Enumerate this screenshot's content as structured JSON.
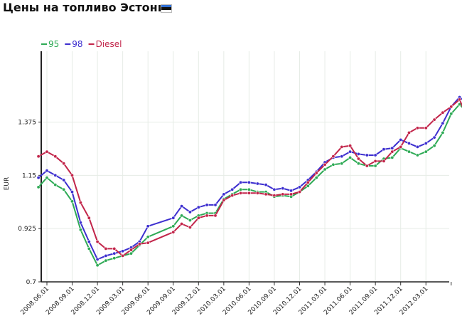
{
  "title": "Цены на топливо Эстония",
  "colors": {
    "flag_top": "#2f6fd6",
    "flag_mid": "#111111",
    "flag_bottom": "#ffffff"
  },
  "chart_data": {
    "type": "line",
    "title": "Цены на топливо Эстония",
    "ylabel": "EUR",
    "xlabel": "",
    "ylim": [
      0.7,
      1.65
    ],
    "yticks": [
      0.7,
      0.925,
      1.15,
      1.375
    ],
    "ytick_labels": [
      "0.7",
      "0.925",
      "1.15",
      "1.375"
    ],
    "grid": true,
    "legend_position": "top-left",
    "x_tick_labels": [
      "2008.06.01",
      "2008.09.01",
      "2008.12.01",
      "2009.03.01",
      "2009.06.01",
      "2009.09.01",
      "2009.12.01",
      "2010.03.01",
      "2010.06.01",
      "2010.09.01",
      "2010.12.01",
      "2011.03.01",
      "2011.06.01",
      "2011.09.01",
      "2011.12.01",
      "2012.03.01"
    ],
    "series": [
      {
        "name": "95",
        "color": "#2eaa55",
        "points": [
          [
            "2008.05.01",
            1.1
          ],
          [
            "2008.06.01",
            1.14
          ],
          [
            "2008.07.01",
            1.11
          ],
          [
            "2008.08.01",
            1.09
          ],
          [
            "2008.09.01",
            1.04
          ],
          [
            "2008.10.01",
            0.92
          ],
          [
            "2008.11.01",
            0.84
          ],
          [
            "2008.12.01",
            0.77
          ],
          [
            "2009.01.01",
            0.79
          ],
          [
            "2009.02.01",
            0.8
          ],
          [
            "2009.03.01",
            0.81
          ],
          [
            "2009.04.01",
            0.82
          ],
          [
            "2009.05.01",
            0.855
          ],
          [
            "2009.06.01",
            0.89
          ],
          [
            "2009.09.01",
            0.935
          ],
          [
            "2009.10.01",
            0.98
          ],
          [
            "2009.11.01",
            0.96
          ],
          [
            "2009.12.01",
            0.98
          ],
          [
            "2010.01.01",
            0.99
          ],
          [
            "2010.02.01",
            0.99
          ],
          [
            "2010.03.01",
            1.05
          ],
          [
            "2010.04.01",
            1.07
          ],
          [
            "2010.05.01",
            1.09
          ],
          [
            "2010.06.01",
            1.09
          ],
          [
            "2010.07.01",
            1.08
          ],
          [
            "2010.08.01",
            1.08
          ],
          [
            "2010.09.01",
            1.06
          ],
          [
            "2010.10.01",
            1.065
          ],
          [
            "2010.11.01",
            1.06
          ],
          [
            "2010.12.01",
            1.08
          ],
          [
            "2011.01.01",
            1.105
          ],
          [
            "2011.02.01",
            1.14
          ],
          [
            "2011.03.01",
            1.175
          ],
          [
            "2011.04.01",
            1.195
          ],
          [
            "2011.05.01",
            1.2
          ],
          [
            "2011.06.01",
            1.225
          ],
          [
            "2011.07.01",
            1.2
          ],
          [
            "2011.08.01",
            1.19
          ],
          [
            "2011.09.01",
            1.19
          ],
          [
            "2011.10.01",
            1.22
          ],
          [
            "2011.11.01",
            1.225
          ],
          [
            "2011.12.01",
            1.265
          ],
          [
            "2012.01.01",
            1.25
          ],
          [
            "2012.02.01",
            1.235
          ],
          [
            "2012.03.01",
            1.25
          ],
          [
            "2012.04.01",
            1.275
          ],
          [
            "2012.05.01",
            1.33
          ],
          [
            "2012.06.01",
            1.41
          ],
          [
            "2012.07.01",
            1.45
          ],
          [
            "2012.08.01",
            1.41
          ]
        ]
      },
      {
        "name": "98",
        "color": "#3d2fcf",
        "points": [
          [
            "2008.05.01",
            1.14
          ],
          [
            "2008.06.01",
            1.17
          ],
          [
            "2008.07.01",
            1.15
          ],
          [
            "2008.08.01",
            1.13
          ],
          [
            "2008.09.01",
            1.08
          ],
          [
            "2008.10.01",
            0.95
          ],
          [
            "2008.11.01",
            0.87
          ],
          [
            "2008.12.01",
            0.795
          ],
          [
            "2009.01.01",
            0.81
          ],
          [
            "2009.02.01",
            0.82
          ],
          [
            "2009.03.01",
            0.83
          ],
          [
            "2009.04.01",
            0.845
          ],
          [
            "2009.05.01",
            0.87
          ],
          [
            "2009.06.01",
            0.935
          ],
          [
            "2009.09.01",
            0.97
          ],
          [
            "2009.10.01",
            1.02
          ],
          [
            "2009.11.01",
            0.995
          ],
          [
            "2009.12.01",
            1.015
          ],
          [
            "2010.01.01",
            1.025
          ],
          [
            "2010.02.01",
            1.025
          ],
          [
            "2010.03.01",
            1.07
          ],
          [
            "2010.04.01",
            1.09
          ],
          [
            "2010.05.01",
            1.12
          ],
          [
            "2010.06.01",
            1.12
          ],
          [
            "2010.07.01",
            1.115
          ],
          [
            "2010.08.01",
            1.11
          ],
          [
            "2010.09.01",
            1.09
          ],
          [
            "2010.10.01",
            1.095
          ],
          [
            "2010.11.01",
            1.085
          ],
          [
            "2010.12.01",
            1.1
          ],
          [
            "2011.01.01",
            1.13
          ],
          [
            "2011.02.01",
            1.165
          ],
          [
            "2011.03.01",
            1.205
          ],
          [
            "2011.04.01",
            1.225
          ],
          [
            "2011.05.01",
            1.23
          ],
          [
            "2011.06.01",
            1.25
          ],
          [
            "2011.07.01",
            1.24
          ],
          [
            "2011.08.01",
            1.235
          ],
          [
            "2011.09.01",
            1.235
          ],
          [
            "2011.10.01",
            1.26
          ],
          [
            "2011.11.01",
            1.265
          ],
          [
            "2011.12.01",
            1.3
          ],
          [
            "2012.01.01",
            1.285
          ],
          [
            "2012.02.01",
            1.27
          ],
          [
            "2012.03.01",
            1.285
          ],
          [
            "2012.04.01",
            1.31
          ],
          [
            "2012.05.01",
            1.37
          ],
          [
            "2012.06.01",
            1.44
          ],
          [
            "2012.07.01",
            1.48
          ],
          [
            "2012.08.01",
            1.45
          ]
        ]
      },
      {
        "name": "Diesel",
        "color": "#c2254a",
        "points": [
          [
            "2008.05.01",
            1.23
          ],
          [
            "2008.06.01",
            1.25
          ],
          [
            "2008.07.01",
            1.23
          ],
          [
            "2008.08.01",
            1.2
          ],
          [
            "2008.09.01",
            1.15
          ],
          [
            "2008.10.01",
            1.035
          ],
          [
            "2008.11.01",
            0.97
          ],
          [
            "2008.12.01",
            0.87
          ],
          [
            "2009.01.01",
            0.84
          ],
          [
            "2009.02.01",
            0.84
          ],
          [
            "2009.03.01",
            0.81
          ],
          [
            "2009.04.01",
            0.835
          ],
          [
            "2009.05.01",
            0.86
          ],
          [
            "2009.06.01",
            0.865
          ],
          [
            "2009.09.01",
            0.91
          ],
          [
            "2009.10.01",
            0.945
          ],
          [
            "2009.11.01",
            0.93
          ],
          [
            "2009.12.01",
            0.97
          ],
          [
            "2010.01.01",
            0.98
          ],
          [
            "2010.02.01",
            0.98
          ],
          [
            "2010.03.01",
            1.045
          ],
          [
            "2010.04.01",
            1.065
          ],
          [
            "2010.05.01",
            1.075
          ],
          [
            "2010.06.01",
            1.075
          ],
          [
            "2010.07.01",
            1.075
          ],
          [
            "2010.08.01",
            1.07
          ],
          [
            "2010.09.01",
            1.065
          ],
          [
            "2010.10.01",
            1.07
          ],
          [
            "2010.11.01",
            1.07
          ],
          [
            "2010.12.01",
            1.08
          ],
          [
            "2011.01.01",
            1.12
          ],
          [
            "2011.02.01",
            1.16
          ],
          [
            "2011.03.01",
            1.195
          ],
          [
            "2011.04.01",
            1.23
          ],
          [
            "2011.05.01",
            1.27
          ],
          [
            "2011.06.01",
            1.275
          ],
          [
            "2011.07.01",
            1.22
          ],
          [
            "2011.08.01",
            1.19
          ],
          [
            "2011.09.01",
            1.21
          ],
          [
            "2011.10.01",
            1.21
          ],
          [
            "2011.11.01",
            1.25
          ],
          [
            "2011.12.01",
            1.27
          ],
          [
            "2012.01.01",
            1.33
          ],
          [
            "2012.02.01",
            1.35
          ],
          [
            "2012.03.01",
            1.35
          ],
          [
            "2012.04.01",
            1.385
          ],
          [
            "2012.05.01",
            1.415
          ],
          [
            "2012.06.01",
            1.44
          ],
          [
            "2012.07.01",
            1.47
          ],
          [
            "2012.08.01",
            1.385
          ]
        ]
      }
    ]
  }
}
